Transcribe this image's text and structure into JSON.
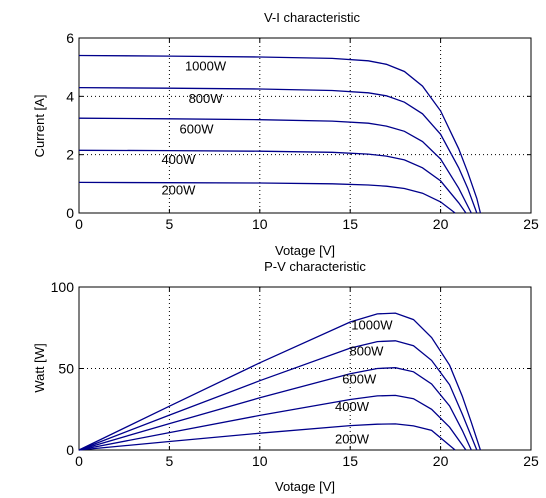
{
  "colors": {
    "curve": "#00008b",
    "axis": "#000000",
    "grid": "#000000",
    "background": "#ffffff"
  },
  "chart_data": [
    {
      "type": "line",
      "title": "V-I characteristic",
      "xlabel": "Votage [V]",
      "ylabel": "Current [A]",
      "xlim": [
        0,
        25
      ],
      "ylim": [
        0,
        6
      ],
      "xticks": [
        0,
        5,
        10,
        15,
        20,
        25
      ],
      "yticks": [
        0,
        2,
        4,
        6
      ],
      "grid": true,
      "series": [
        {
          "name": "1000W",
          "x": [
            0,
            5,
            10,
            14,
            16,
            17,
            18,
            19,
            20,
            21,
            21.5,
            22,
            22.2
          ],
          "y": [
            5.4,
            5.38,
            5.35,
            5.3,
            5.22,
            5.1,
            4.85,
            4.35,
            3.5,
            2.2,
            1.4,
            0.5,
            0
          ]
        },
        {
          "name": "800W",
          "x": [
            0,
            5,
            10,
            14,
            16,
            17,
            18,
            19,
            20,
            21,
            21.5,
            22
          ],
          "y": [
            4.3,
            4.28,
            4.25,
            4.2,
            4.12,
            4.02,
            3.8,
            3.4,
            2.7,
            1.55,
            0.85,
            0
          ]
        },
        {
          "name": "600W",
          "x": [
            0,
            5,
            10,
            14,
            16,
            17,
            18,
            19,
            20,
            21,
            21.7
          ],
          "y": [
            3.25,
            3.23,
            3.2,
            3.15,
            3.08,
            2.98,
            2.8,
            2.45,
            1.85,
            0.85,
            0
          ]
        },
        {
          "name": "400W",
          "x": [
            0,
            5,
            10,
            14,
            16,
            17,
            18,
            19,
            20,
            21,
            21.4
          ],
          "y": [
            2.15,
            2.14,
            2.12,
            2.08,
            2.02,
            1.95,
            1.82,
            1.55,
            1.1,
            0.35,
            0
          ]
        },
        {
          "name": "200W",
          "x": [
            0,
            5,
            10,
            14,
            16,
            17,
            18,
            19,
            20,
            20.8
          ],
          "y": [
            1.05,
            1.04,
            1.03,
            1.0,
            0.96,
            0.92,
            0.84,
            0.68,
            0.38,
            0
          ]
        }
      ]
    },
    {
      "type": "line",
      "title": "P-V characteristic",
      "xlabel": "Votage [V]",
      "ylabel": "Watt [W]",
      "xlim": [
        0,
        25
      ],
      "ylim": [
        0,
        100
      ],
      "xticks": [
        0,
        5,
        10,
        15,
        20,
        25
      ],
      "yticks": [
        0,
        50,
        100
      ],
      "grid": true,
      "series": [
        {
          "name": "1000W",
          "x": [
            0,
            5,
            10,
            15,
            16.5,
            17.5,
            18.5,
            19.5,
            20.5,
            21.2,
            21.7,
            22.2
          ],
          "y": [
            0,
            26.9,
            53.5,
            78.5,
            83.5,
            84,
            80,
            69,
            52,
            33,
            17,
            0
          ]
        },
        {
          "name": "800W",
          "x": [
            0,
            5,
            10,
            15,
            16.5,
            17.5,
            18.5,
            19.5,
            20.5,
            21.2,
            22
          ],
          "y": [
            0,
            21.4,
            42.5,
            62.5,
            66.5,
            67,
            64,
            55,
            40,
            22,
            0
          ]
        },
        {
          "name": "600W",
          "x": [
            0,
            5,
            10,
            15,
            16.5,
            17.5,
            18.5,
            19.5,
            20.5,
            21.2,
            21.7
          ],
          "y": [
            0,
            16.2,
            32,
            46.8,
            50,
            50.5,
            48,
            40.5,
            27,
            12,
            0
          ]
        },
        {
          "name": "400W",
          "x": [
            0,
            5,
            10,
            15,
            16.5,
            17.5,
            18.5,
            19.5,
            20.5,
            21.4
          ],
          "y": [
            0,
            10.7,
            21.2,
            31,
            33.2,
            33.5,
            31.5,
            25,
            14,
            0
          ]
        },
        {
          "name": "200W",
          "x": [
            0,
            5,
            10,
            15,
            16.5,
            17.5,
            18.5,
            19.5,
            20.8
          ],
          "y": [
            0,
            5.2,
            10.3,
            15,
            15.8,
            16,
            14.8,
            12,
            0
          ]
        }
      ]
    }
  ]
}
